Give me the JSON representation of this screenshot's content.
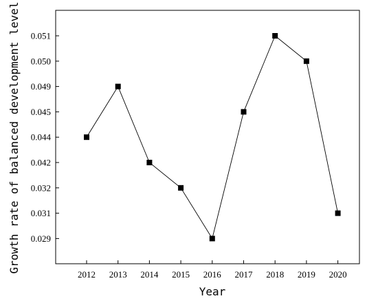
{
  "chart_data": {
    "type": "line",
    "title": "",
    "xlabel": "Year",
    "ylabel": "Growth rate of balanced development level",
    "x": [
      "2012",
      "2013",
      "2014",
      "2015",
      "2016",
      "2017",
      "2018",
      "2019",
      "2020"
    ],
    "y_tick_labels": [
      "0.029",
      "0.031",
      "0.032",
      "0.042",
      "0.044",
      "0.045",
      "0.049",
      "0.050",
      "0.051"
    ],
    "series": [
      {
        "values": [
          "0.044",
          "0.049",
          "0.042",
          "0.032",
          "0.029",
          "0.045",
          "0.051",
          "0.050",
          "0.031"
        ],
        "marker": "square",
        "color": "#000000"
      }
    ],
    "grid": false,
    "legend": "none"
  }
}
